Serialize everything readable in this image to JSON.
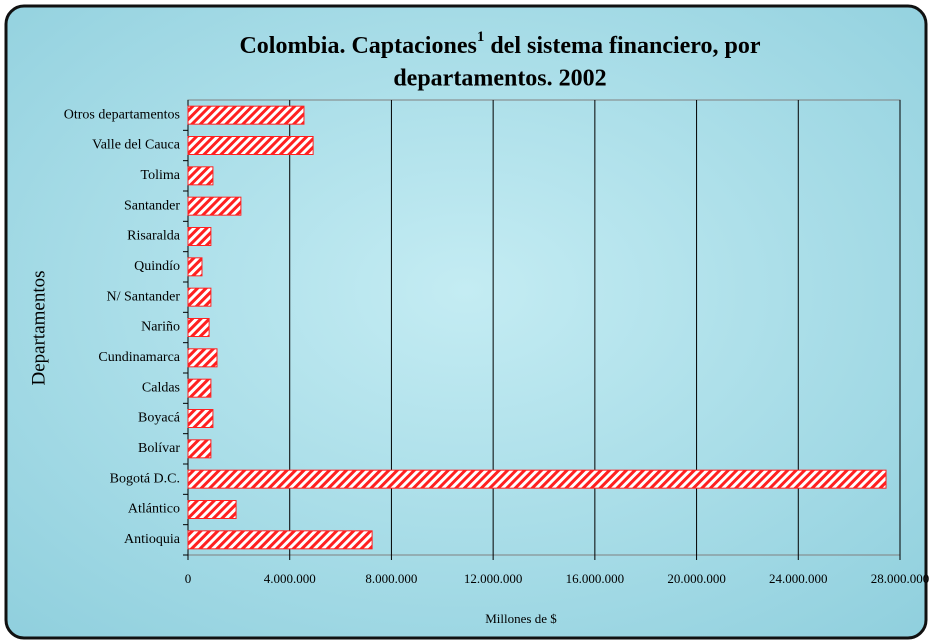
{
  "chart_data": {
    "type": "bar",
    "orientation": "horizontal",
    "title_parts": [
      "Colombia. Captaciones",
      "1",
      " del sistema financiero, por",
      "departamentos. 2002"
    ],
    "x_label": "Millones de $",
    "y_label": "Departamentos",
    "categories": [
      "Antioquia",
      "Atlántico",
      "Bogotá D.C.",
      "Bolívar",
      "Boyacá",
      "Caldas",
      "Cundinamarca",
      "Nariño",
      "N/ Santander",
      "Quindío",
      "Risaralda",
      "Santander",
      "Tolima",
      "Valle del Cauca",
      "Otros departamentos"
    ],
    "values": [
      7240000,
      1890000,
      27450000,
      900000,
      980000,
      900000,
      1140000,
      830000,
      900000,
      550000,
      900000,
      2080000,
      980000,
      4920000,
      4560000
    ],
    "color": "#ff2020",
    "xlim": [
      0,
      28000000
    ],
    "xticks": [
      0,
      {
        "value": 4000000,
        "label": "4.000.000"
      },
      {
        "value": 8000000,
        "label": "8.000.000"
      },
      {
        "value": 12000000,
        "label": "12.000.000"
      },
      {
        "value": 16000000,
        "label": "16.000.000"
      },
      {
        "value": 20000000,
        "label": "20.000.000"
      },
      {
        "value": 24000000,
        "label": "24.000.000"
      },
      {
        "value": 28000000,
        "label": "28.000.000"
      }
    ],
    "grid": true
  }
}
